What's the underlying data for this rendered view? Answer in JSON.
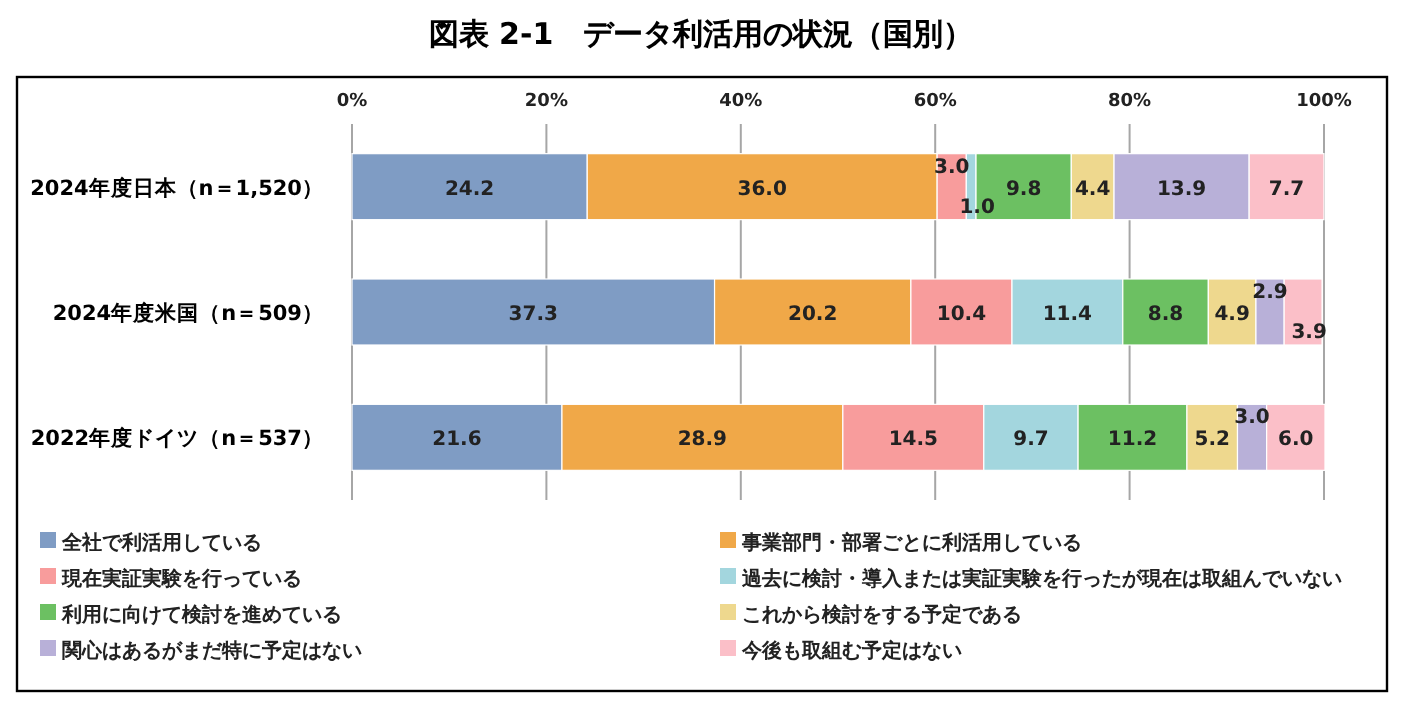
{
  "chart_data": {
    "type": "bar",
    "orientation": "horizontal",
    "stacked": true,
    "title": "図表 2-1　データ利活用の状況（国別）",
    "categories": [
      "2024年度日本（n＝1,520）",
      "2024年度米国（n＝509）",
      "2022年度ドイツ（n＝537）"
    ],
    "series": [
      {
        "name": "全社で利活用している",
        "color": "#7f9cc4",
        "values": [
          24.2,
          37.3,
          21.6
        ],
        "value_labels": [
          "24.2",
          "37.3",
          "21.6"
        ]
      },
      {
        "name": "事業部門・部署ごとに利活用している",
        "color": "#f0a848",
        "values": [
          36.0,
          20.2,
          28.9
        ],
        "value_labels": [
          "36.0",
          "20.2",
          "28.9"
        ]
      },
      {
        "name": "現在実証実験を行っている",
        "color": "#f89c9c",
        "values": [
          3.0,
          10.4,
          14.5
        ],
        "value_labels": [
          "3.0",
          "10.4",
          "14.5"
        ]
      },
      {
        "name": "過去に検討・導入または実証実験を行ったが現在は取組んでいない",
        "color": "#a3d6de",
        "values": [
          1.0,
          11.4,
          9.7
        ],
        "value_labels": [
          "1.0",
          "11.4",
          "9.7"
        ]
      },
      {
        "name": "利用に向けて検討を進めている",
        "color": "#6cc062",
        "values": [
          9.8,
          8.8,
          11.2
        ],
        "value_labels": [
          "9.8",
          "8.8",
          "11.2"
        ]
      },
      {
        "name": "これから検討をする予定である",
        "color": "#eed88e",
        "values": [
          4.4,
          4.9,
          5.2
        ],
        "value_labels": [
          "4.4",
          "4.9",
          "5.2"
        ]
      },
      {
        "name": "関心はあるがまだ特に予定はない",
        "color": "#b8b0d8",
        "values": [
          13.9,
          2.9,
          3.0
        ],
        "value_labels": [
          "13.9",
          "2.9",
          "3.0"
        ]
      },
      {
        "name": "今後も取組む予定はない",
        "color": "#fbbfc8",
        "values": [
          7.7,
          3.9,
          6.0
        ],
        "value_labels": [
          "7.7",
          "3.9",
          "6.0"
        ]
      }
    ],
    "xlim": [
      0,
      100
    ],
    "xticks": [
      {
        "value": 0,
        "label": "0%"
      },
      {
        "value": 20,
        "label": "20%"
      },
      {
        "value": 40,
        "label": "40%"
      },
      {
        "value": 60,
        "label": "60%"
      },
      {
        "value": 80,
        "label": "80%"
      },
      {
        "value": 100,
        "label": "100%"
      }
    ],
    "grid": "x",
    "legend": "bottom"
  }
}
